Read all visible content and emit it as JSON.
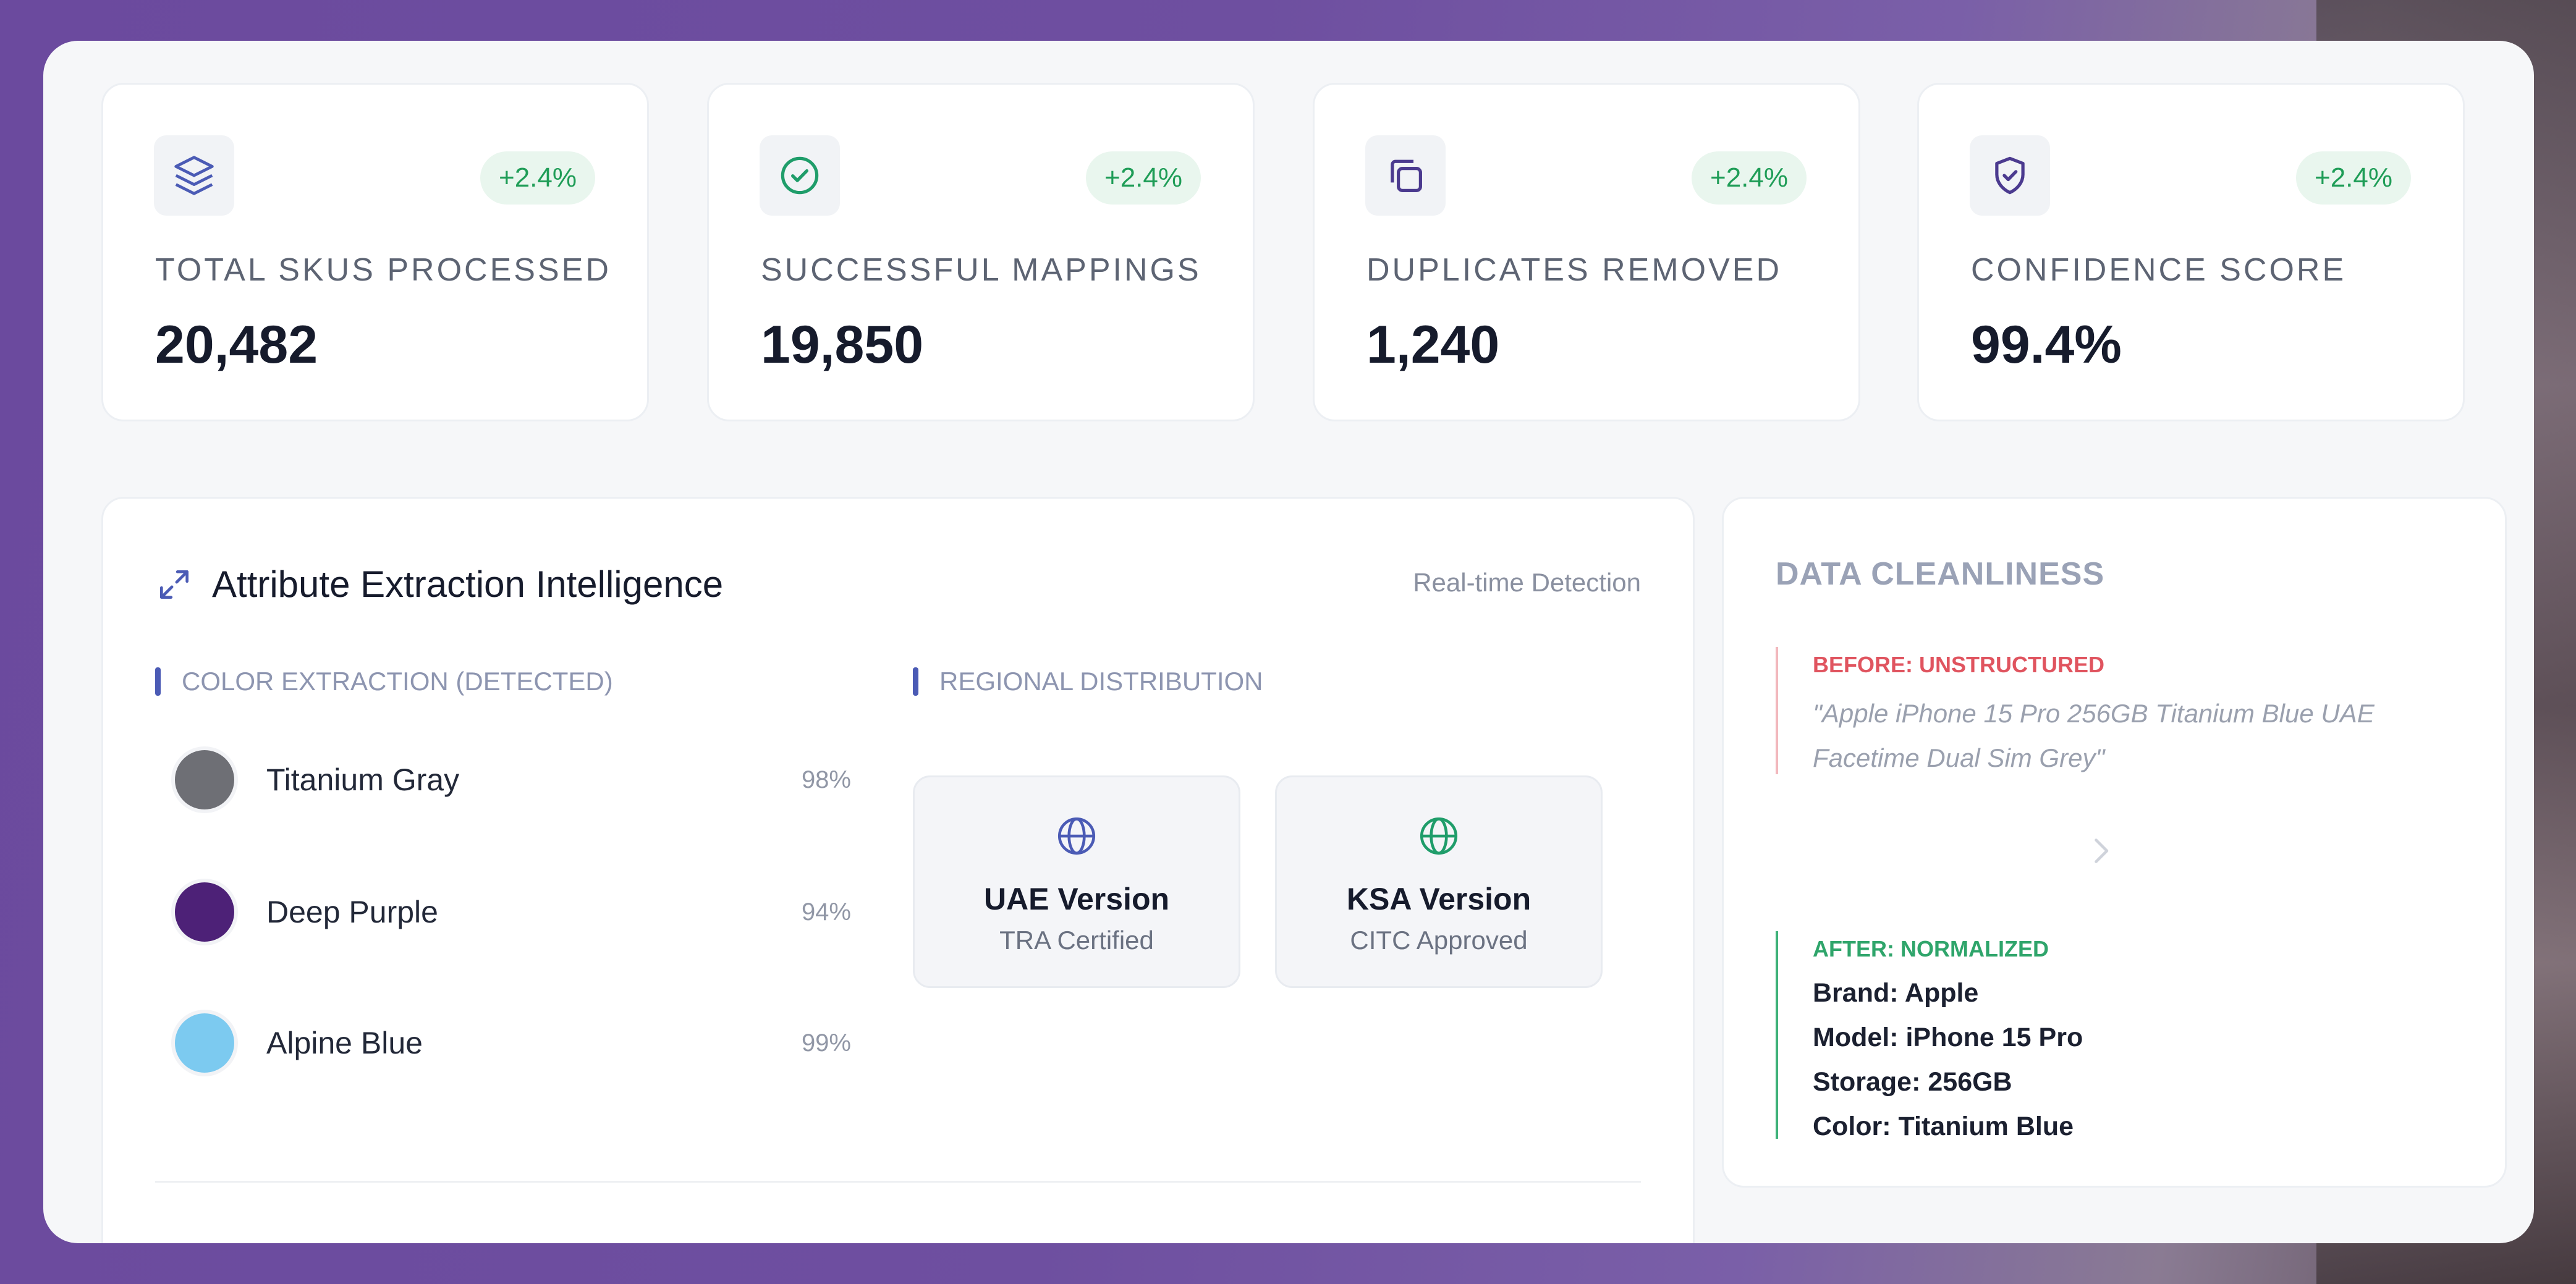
{
  "stats": [
    {
      "icon": "layers-icon",
      "badge": "+2.4%",
      "label": "TOTAL SKUS PROCESSED",
      "value": "20,482"
    },
    {
      "icon": "check-circle-icon",
      "badge": "+2.4%",
      "label": "SUCCESSFUL MAPPINGS",
      "value": "19,850"
    },
    {
      "icon": "copy-icon",
      "badge": "+2.4%",
      "label": "DUPLICATES REMOVED",
      "value": "1,240"
    },
    {
      "icon": "shield-check-icon",
      "badge": "+2.4%",
      "label": "CONFIDENCE SCORE",
      "value": "99.4%"
    }
  ],
  "attribute_panel": {
    "title": "Attribute Extraction Intelligence",
    "status": "Real-time Detection",
    "color_section": {
      "heading": "COLOR EXTRACTION (DETECTED)",
      "colors": [
        {
          "name": "Titanium Gray",
          "confidence": "98%",
          "hex": "#6e6f75"
        },
        {
          "name": "Deep Purple",
          "confidence": "94%",
          "hex": "#4d2177"
        },
        {
          "name": "Alpine Blue",
          "confidence": "99%",
          "hex": "#7ccaf0"
        }
      ]
    },
    "regional_section": {
      "heading": "REGIONAL DISTRIBUTION",
      "regions": [
        {
          "name": "UAE Version",
          "status": "TRA Certified",
          "icon": "globe-icon",
          "color": "#4b5bb5"
        },
        {
          "name": "KSA Version",
          "status": "CITC Approved",
          "icon": "globe-icon",
          "color": "#1f9d6a"
        }
      ]
    }
  },
  "cleanliness_panel": {
    "title": "DATA CLEANLINESS",
    "before": {
      "label": "BEFORE: UNSTRUCTURED",
      "line1": "\"Apple iPhone 15 Pro 256GB Titanium Blue UAE",
      "line2": "Facetime Dual Sim Grey\""
    },
    "after": {
      "label": "AFTER: NORMALIZED",
      "fields": [
        "Brand: Apple",
        "Model: iPhone 15 Pro",
        "Storage: 256GB",
        "Color: Titanium Blue"
      ]
    }
  },
  "colors": {
    "accent": "#4b5bb5",
    "success": "#1f9d57",
    "danger": "#e0545f"
  }
}
